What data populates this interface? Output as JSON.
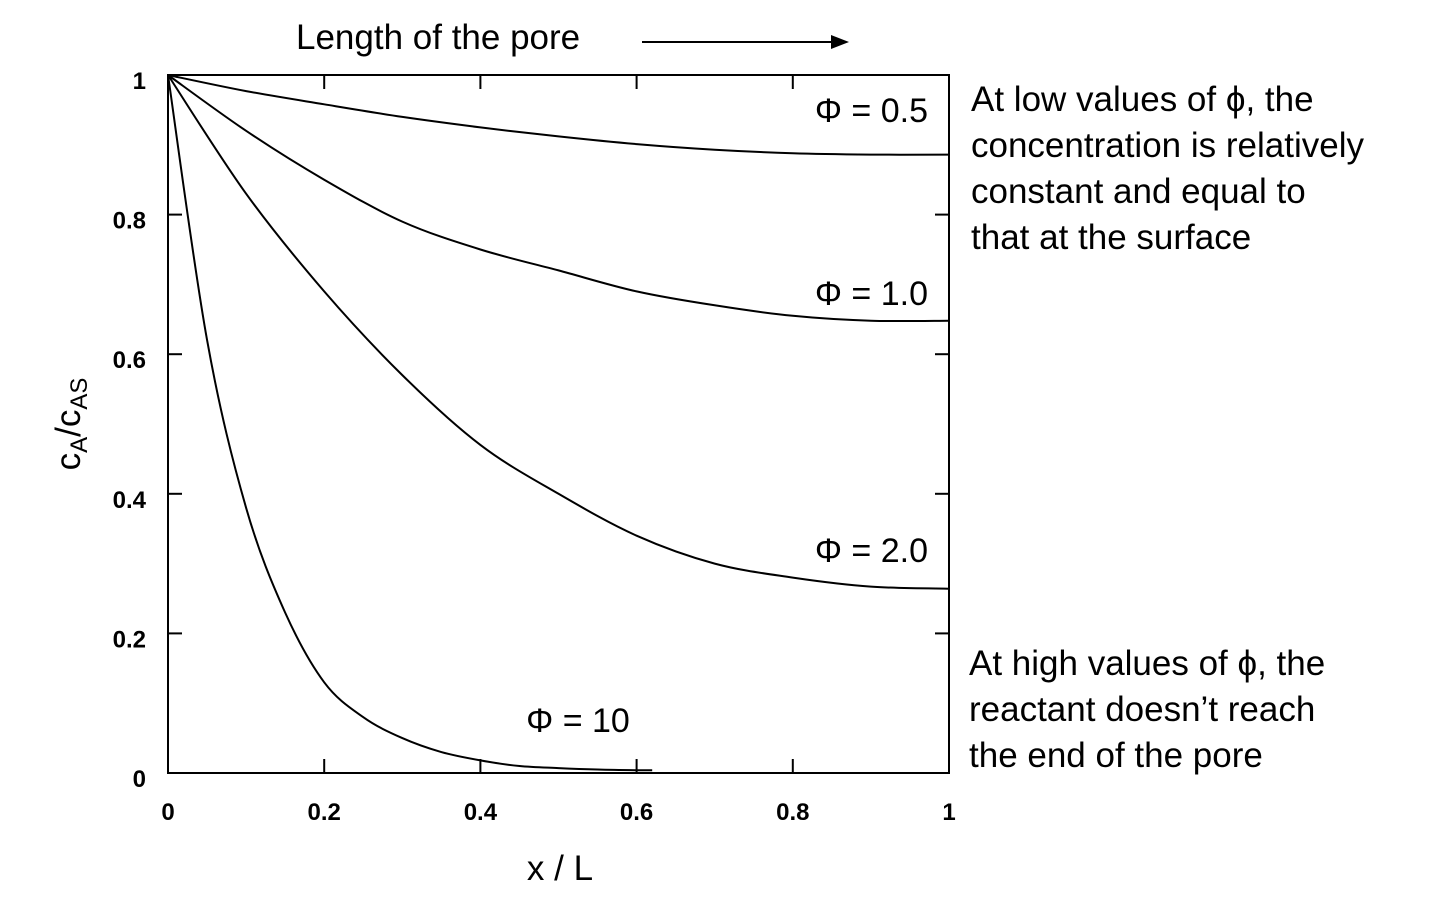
{
  "header": {
    "direction_label": "Length of the pore"
  },
  "annotations": {
    "low_phi": "At low values of ϕ, the\nconcentration is relatively\nconstant and equal to\nthat at the surface",
    "high_phi": "At high values of ϕ, the\nreactant doesn’t reach\nthe end of the pore"
  },
  "chart_data": {
    "type": "line",
    "title": "",
    "xlabel": "x / L",
    "ylabel": {
      "base": "c",
      "sub1": "A",
      "mid": "/c",
      "sub2": "AS"
    },
    "xlim": [
      0,
      1
    ],
    "ylim": [
      0,
      1
    ],
    "xticks": [
      "0",
      "0.2",
      "0.4",
      "0.6",
      "0.8",
      "1"
    ],
    "yticks": [
      "0",
      "0.2",
      "0.4",
      "0.6",
      "0.8",
      "1"
    ],
    "grid": false,
    "series": [
      {
        "name": "Φ = 0.5",
        "x": [
          0,
          0.1,
          0.2,
          0.3,
          0.4,
          0.5,
          0.6,
          0.7,
          0.8,
          0.9,
          1.0
        ],
        "y": [
          1.0,
          0.977,
          0.958,
          0.94,
          0.925,
          0.912,
          0.901,
          0.893,
          0.888,
          0.886,
          0.886
        ]
      },
      {
        "name": "Φ = 1.0",
        "x": [
          0,
          0.1,
          0.2,
          0.3,
          0.4,
          0.5,
          0.6,
          0.7,
          0.8,
          0.9,
          1.0
        ],
        "y": [
          1.0,
          0.92,
          0.85,
          0.79,
          0.75,
          0.72,
          0.69,
          0.67,
          0.655,
          0.648,
          0.648
        ]
      },
      {
        "name": "Φ = 2.0",
        "x": [
          0,
          0.1,
          0.2,
          0.3,
          0.4,
          0.5,
          0.6,
          0.7,
          0.8,
          0.9,
          1.0
        ],
        "y": [
          1.0,
          0.83,
          0.69,
          0.57,
          0.47,
          0.4,
          0.34,
          0.3,
          0.28,
          0.267,
          0.264
        ]
      },
      {
        "name": "Φ = 10",
        "x": [
          0,
          0.05,
          0.1,
          0.15,
          0.2,
          0.25,
          0.3,
          0.35,
          0.4,
          0.45,
          0.5,
          0.55,
          0.6,
          0.62
        ],
        "y": [
          1.0,
          0.62,
          0.38,
          0.23,
          0.13,
          0.08,
          0.05,
          0.03,
          0.018,
          0.01,
          0.007,
          0.005,
          0.004,
          0.004
        ]
      }
    ]
  }
}
